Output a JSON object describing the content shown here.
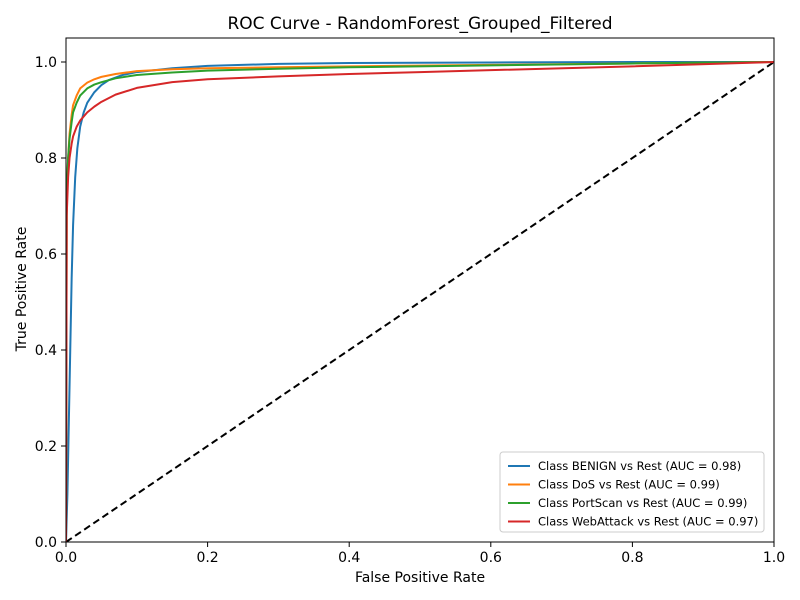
{
  "chart_data": {
    "type": "line",
    "title": "ROC Curve - RandomForest_Grouped_Filtered",
    "xlabel": "False Positive Rate",
    "ylabel": "True Positive Rate",
    "xlim": [
      0,
      1
    ],
    "ylim": [
      0,
      1.05
    ],
    "xticks": [
      "0.0",
      "0.2",
      "0.4",
      "0.6",
      "0.8",
      "1.0"
    ],
    "yticks": [
      "0.0",
      "0.2",
      "0.4",
      "0.6",
      "0.8",
      "1.0"
    ],
    "grid": false,
    "legend_position": "lower-right",
    "series": [
      {
        "name": "Class BENIGN vs Rest (AUC = 0.98)",
        "color": "#1f77b4",
        "x": [
          0,
          0.002,
          0.004,
          0.006,
          0.008,
          0.01,
          0.013,
          0.016,
          0.02,
          0.025,
          0.03,
          0.04,
          0.05,
          0.06,
          0.08,
          0.1,
          0.15,
          0.2,
          0.3,
          0.4,
          0.6,
          0.8,
          1.0
        ],
        "y": [
          0,
          0.1,
          0.25,
          0.4,
          0.55,
          0.66,
          0.76,
          0.82,
          0.865,
          0.895,
          0.915,
          0.937,
          0.952,
          0.962,
          0.973,
          0.979,
          0.987,
          0.992,
          0.996,
          0.998,
          0.999,
          1.0,
          1.0
        ]
      },
      {
        "name": "Class DoS vs Rest (AUC = 0.99)",
        "color": "#ff7f0e",
        "x": [
          0,
          0.001,
          0.003,
          0.005,
          0.008,
          0.01,
          0.015,
          0.02,
          0.03,
          0.04,
          0.05,
          0.07,
          0.1,
          0.15,
          0.2,
          0.3,
          0.4,
          0.6,
          0.8,
          1.0
        ],
        "y": [
          0,
          0.7,
          0.8,
          0.85,
          0.89,
          0.91,
          0.93,
          0.945,
          0.957,
          0.964,
          0.969,
          0.975,
          0.981,
          0.985,
          0.987,
          0.989,
          0.991,
          0.994,
          0.997,
          1.0
        ]
      },
      {
        "name": "Class PortScan vs Rest (AUC = 0.99)",
        "color": "#2ca02c",
        "x": [
          0,
          0.001,
          0.003,
          0.005,
          0.008,
          0.01,
          0.015,
          0.02,
          0.03,
          0.04,
          0.05,
          0.07,
          0.1,
          0.15,
          0.2,
          0.3,
          0.4,
          0.6,
          0.8,
          1.0
        ],
        "y": [
          0,
          0.72,
          0.8,
          0.84,
          0.875,
          0.895,
          0.915,
          0.93,
          0.945,
          0.953,
          0.958,
          0.966,
          0.973,
          0.978,
          0.982,
          0.986,
          0.989,
          0.993,
          0.997,
          1.0
        ]
      },
      {
        "name": "Class WebAttack vs Rest (AUC = 0.97)",
        "color": "#d62728",
        "x": [
          0,
          0.001,
          0.003,
          0.005,
          0.008,
          0.01,
          0.015,
          0.02,
          0.03,
          0.04,
          0.05,
          0.07,
          0.1,
          0.15,
          0.2,
          0.3,
          0.4,
          0.5,
          0.6,
          0.8,
          1.0
        ],
        "y": [
          0,
          0.68,
          0.76,
          0.8,
          0.83,
          0.845,
          0.865,
          0.878,
          0.895,
          0.907,
          0.917,
          0.932,
          0.946,
          0.958,
          0.964,
          0.97,
          0.975,
          0.979,
          0.983,
          0.991,
          1.0
        ]
      }
    ],
    "reference_line": {
      "x": [
        0,
        1
      ],
      "y": [
        0,
        1
      ],
      "color": "#000000",
      "style": "dashed"
    }
  }
}
